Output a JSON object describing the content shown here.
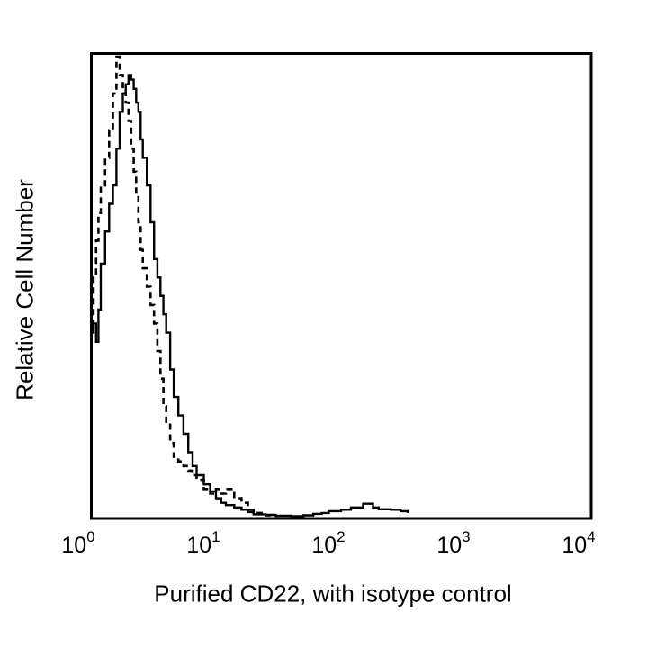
{
  "chart_data": {
    "type": "line",
    "title": "",
    "xlabel": "Purified CD22, with isotype control",
    "ylabel": "Relative Cell Number",
    "x_scale": "log",
    "xlim": [
      1,
      10000
    ],
    "x_ticks": [
      {
        "base": "10",
        "exp": "0",
        "value": 1
      },
      {
        "base": "10",
        "exp": "1",
        "value": 10
      },
      {
        "base": "10",
        "exp": "2",
        "value": 100
      },
      {
        "base": "10",
        "exp": "3",
        "value": 1000
      },
      {
        "base": "10",
        "exp": "4",
        "value": 10000
      }
    ],
    "y_ticks": [],
    "ylim": [
      0,
      100
    ],
    "grid": false,
    "legend": null,
    "series": [
      {
        "name": "Purified CD22",
        "style": "solid",
        "color": "#000000",
        "x": [
          1.0,
          1.05,
          1.1,
          1.15,
          1.2,
          1.3,
          1.4,
          1.5,
          1.6,
          1.7,
          1.8,
          1.9,
          2.0,
          2.1,
          2.2,
          2.3,
          2.4,
          2.5,
          2.6,
          2.8,
          3.0,
          3.2,
          3.4,
          3.6,
          3.8,
          4.0,
          4.3,
          4.6,
          5.0,
          5.5,
          6.0,
          6.5,
          7.0,
          8.0,
          9.0,
          10,
          11,
          12,
          14,
          16,
          18,
          20,
          25,
          30,
          40,
          50,
          60,
          70,
          80,
          100,
          120,
          150,
          180,
          200,
          250,
          300,
          340
        ],
        "values": [
          40,
          42,
          38,
          45,
          55,
          62,
          68,
          72,
          80,
          88,
          92,
          94,
          96,
          95,
          93,
          90,
          88,
          82,
          78,
          72,
          64,
          56,
          52,
          48,
          44,
          40,
          32,
          26,
          22,
          18,
          14,
          11,
          9,
          7,
          5.5,
          4,
          3,
          2.5,
          2,
          1.5,
          1,
          0.5,
          0.4,
          0.2,
          0.1,
          0.3,
          0.6,
          0.8,
          1.2,
          1.5,
          2.0,
          2.8,
          2.0,
          1.6,
          1.5,
          1.2,
          0.8
        ]
      },
      {
        "name": "Isotype control",
        "style": "dashed",
        "color": "#000000",
        "x": [
          1.0,
          1.05,
          1.1,
          1.15,
          1.2,
          1.3,
          1.4,
          1.5,
          1.6,
          1.7,
          1.8,
          1.9,
          2.0,
          2.1,
          2.2,
          2.3,
          2.4,
          2.5,
          2.6,
          2.8,
          3.0,
          3.2,
          3.4,
          3.6,
          3.8,
          4.0,
          4.3,
          4.6,
          5.0,
          5.5,
          6.0,
          6.5,
          7.0,
          8.0,
          9.0,
          10,
          11,
          12,
          14,
          16,
          18,
          20,
          25,
          30
        ],
        "values": [
          42,
          52,
          60,
          66,
          72,
          78,
          84,
          92,
          100,
          96,
          92,
          90,
          86,
          80,
          75,
          70,
          64,
          58,
          54,
          50,
          46,
          42,
          36,
          30,
          24,
          20,
          16,
          13,
          12,
          11,
          10,
          9,
          8,
          6,
          5,
          6,
          5,
          6,
          4,
          3,
          1.5,
          0.8,
          0.3,
          0.1
        ]
      }
    ]
  },
  "axes": {
    "xlabel": "Purified CD22, with isotype control",
    "ylabel": "Relative Cell Number"
  }
}
